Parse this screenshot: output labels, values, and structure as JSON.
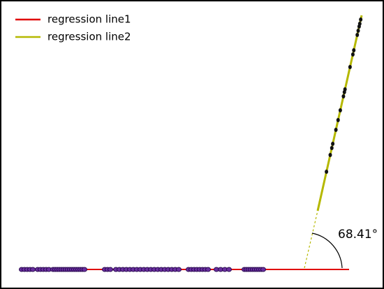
{
  "legend": {
    "items": [
      {
        "label": "regression line1",
        "color": "#e00000"
      },
      {
        "label": "regression line2",
        "color": "#b5b800"
      }
    ]
  },
  "annotation": {
    "angle_label": "68.41°"
  }
}
